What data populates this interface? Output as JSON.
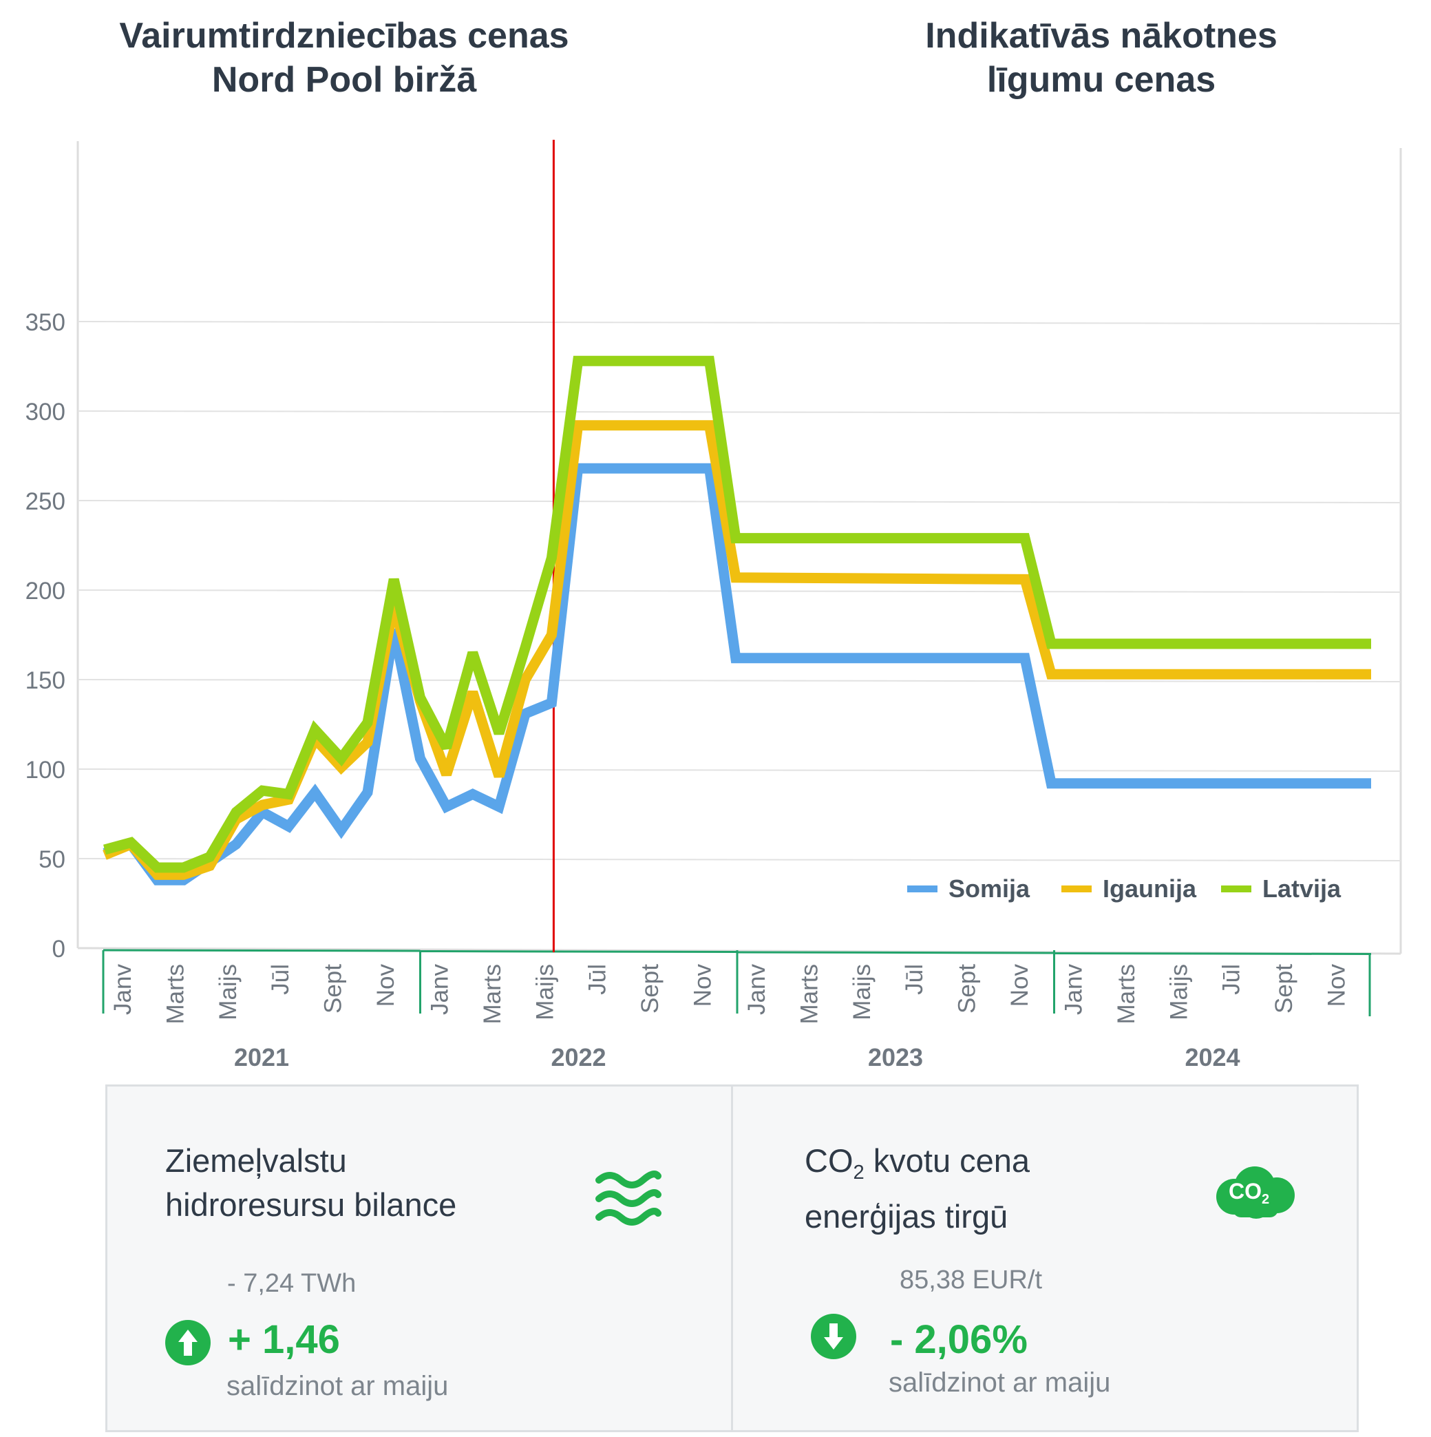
{
  "header": {
    "left_title": [
      "Vairumtirdzniecības cenas",
      "Nord Pool biržā"
    ],
    "right_title": [
      "Indikatīvās nākotnes",
      "līgumu cenas"
    ]
  },
  "chart_data": {
    "type": "line",
    "ylim": [
      0,
      350
    ],
    "yticks": [
      0,
      50,
      100,
      150,
      200,
      250,
      300,
      350
    ],
    "grid": true,
    "legend_position": "bottom-right",
    "month_labels": [
      "Janv",
      "Marts",
      "Maijs",
      "Jūl",
      "Sept",
      "Nov"
    ],
    "years": [
      "2021",
      "2022",
      "2023",
      "2024"
    ],
    "x": [
      "2021-01",
      "2021-02",
      "2021-03",
      "2021-04",
      "2021-05",
      "2021-06",
      "2021-07",
      "2021-08",
      "2021-09",
      "2021-10",
      "2021-11",
      "2021-12",
      "2022-01",
      "2022-02",
      "2022-03",
      "2022-04",
      "2022-05",
      "2022-06",
      "2022-07",
      "2022-08",
      "2022-09",
      "2022-10",
      "2022-11",
      "2022-12",
      "2023-01",
      "2023-12",
      "2024-01",
      "2024-12"
    ],
    "divider_at": "2022-06",
    "series": [
      {
        "name": "Somija",
        "color": "#5aa5ea",
        "values": [
          53,
          58,
          38,
          38,
          48,
          58,
          76,
          68,
          87,
          66,
          87,
          178,
          106,
          79,
          86,
          79,
          131,
          137,
          268,
          268,
          268,
          268,
          268,
          268,
          162,
          162,
          92,
          92
        ]
      },
      {
        "name": "Igaunija",
        "color": "#f0bf10",
        "values": [
          52,
          58,
          41,
          41,
          46,
          72,
          80,
          83,
          117,
          101,
          115,
          192,
          138,
          97,
          143,
          96,
          150,
          175,
          292,
          292,
          292,
          292,
          292,
          292,
          207,
          206,
          153,
          153
        ]
      },
      {
        "name": "Latvija",
        "color": "#97d317",
        "values": [
          55,
          59,
          45,
          45,
          51,
          76,
          88,
          86,
          122,
          106,
          126,
          206,
          140,
          112,
          165,
          120,
          168,
          218,
          328,
          328,
          328,
          328,
          328,
          328,
          229,
          229,
          170,
          170
        ]
      }
    ]
  },
  "cards": [
    {
      "title": [
        "Ziemeļvalstu",
        "hidroresursu bilance"
      ],
      "reference": "- 7,24 TWh",
      "change": "+ 1,46",
      "note": "salīdzinot ar maiju",
      "direction": "up",
      "icon": "waves-icon"
    },
    {
      "title_prefix": "CO",
      "title_sub": "2",
      "title_rest": " kvotu cena",
      "title_line2": "enerģijas tirgū",
      "reference": "85,38 EUR/t",
      "change": "- 2,06%",
      "note": "salīdzinot ar maiju",
      "direction": "down",
      "icon": "co2-cloud-icon",
      "icon_text": "CO",
      "icon_sub": "2"
    }
  ]
}
